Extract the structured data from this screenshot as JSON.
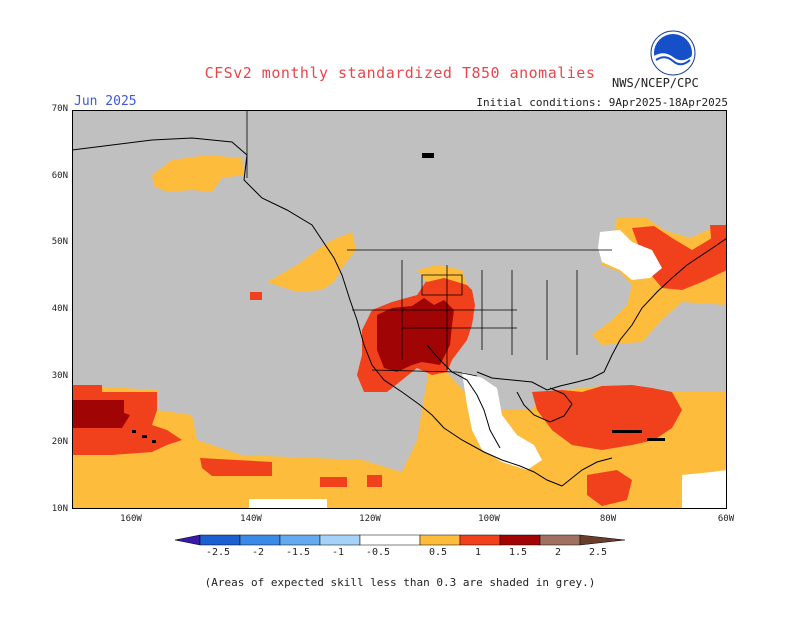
{
  "header": {
    "title": "CFSv2 monthly standardized T850 anomalies",
    "month": "Jun 2025",
    "initial_conditions": "Initial conditions: 9Apr2025-18Apr2025",
    "agency": "NWS/NCEP/CPC",
    "logo_label": "NOAA"
  },
  "map": {
    "lat_labels": [
      "70N",
      "60N",
      "50N",
      "40N",
      "30N",
      "20N",
      "10N"
    ],
    "lon_labels": [
      "160W",
      "140W",
      "120W",
      "100W",
      "80W",
      "60W"
    ],
    "colors": {
      "grey": "#c0c0c0",
      "orange": "#fdbc3c",
      "red_orange": "#f0401c",
      "dark_red": "#a00404",
      "white": "#ffffff",
      "boundary": "#000000"
    }
  },
  "colorbar": {
    "labels": [
      "-2.5",
      "-2",
      "-1.5",
      "-1",
      "-0.5",
      "0.5",
      "1",
      "1.5",
      "2",
      "2.5"
    ],
    "colors": [
      "#3a18a8",
      "#1b5fd0",
      "#3a8ae8",
      "#64aaf0",
      "#a4d2f8",
      "#ffffff",
      "#fdbc3c",
      "#f0401c",
      "#a00404",
      "#a07060",
      "#6a3c2a"
    ]
  },
  "footnote": "(Areas of expected skill less than 0.3 are shaded in grey.)"
}
